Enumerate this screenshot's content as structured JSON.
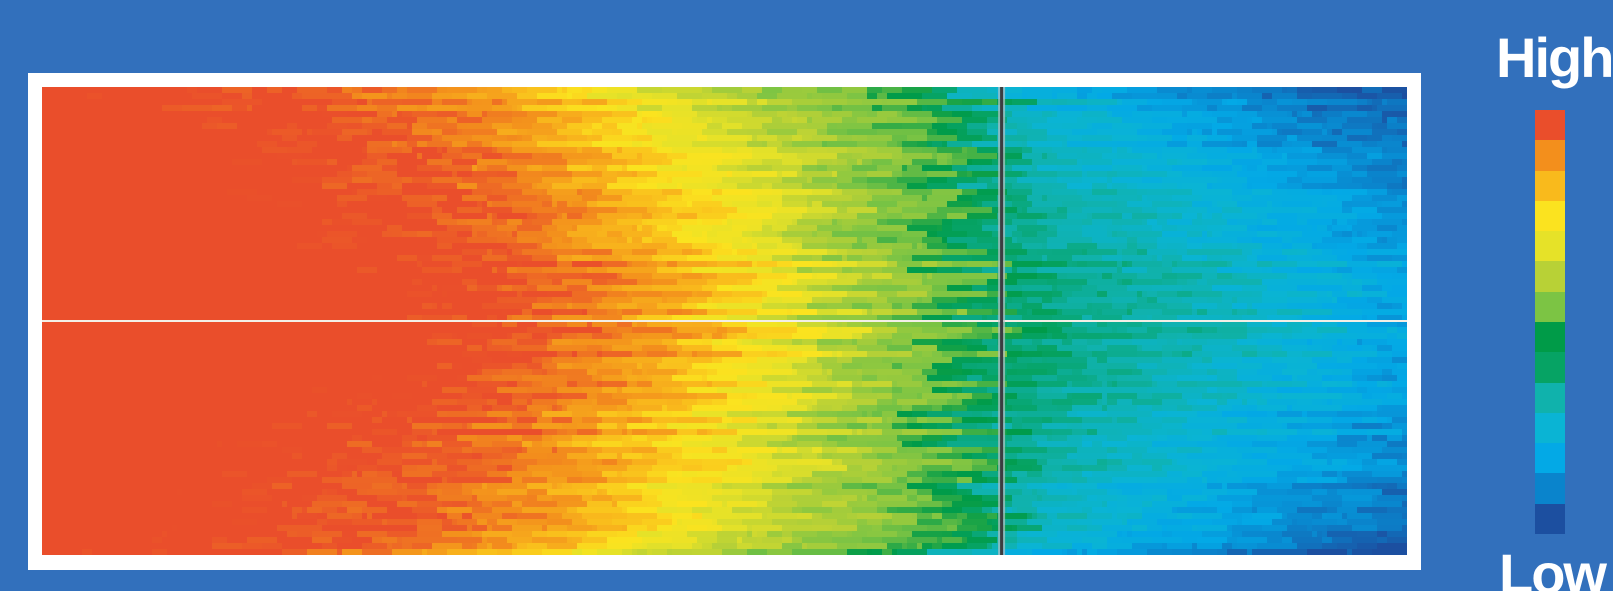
{
  "chart_data": {
    "type": "heatmap",
    "title": "",
    "xlabel": "",
    "ylabel": "",
    "legend": {
      "placement": "right",
      "high_label": "High",
      "low_label": "Low"
    },
    "color_scale": [
      "#1c4fa0",
      "#0a84cc",
      "#03a9e6",
      "#0ab4d4",
      "#10b2ac",
      "#06a364",
      "#009b48",
      "#7cc444",
      "#b8d136",
      "#e6e228",
      "#fbe31f",
      "#f9ba1c",
      "#f38f1c",
      "#ea4e2b"
    ],
    "intensity_profile": {
      "x_fraction": [
        0.0,
        0.1,
        0.2,
        0.3,
        0.38,
        0.46,
        0.54,
        0.6,
        0.66,
        0.7,
        0.75,
        0.8,
        0.85,
        0.9,
        0.95,
        1.0
      ],
      "level_center": [
        13.6,
        13.6,
        13.5,
        13.3,
        12.6,
        11.6,
        9.5,
        7.6,
        7.0,
        5.0,
        4.6,
        4.3,
        3.8,
        3.2,
        2.6,
        1.8
      ],
      "level_edge": [
        13.5,
        13.3,
        12.8,
        12.0,
        10.8,
        8.6,
        7.5,
        7.0,
        6.0,
        3.5,
        2.6,
        1.8,
        1.2,
        0.7,
        0.3,
        0.0
      ]
    },
    "dividers": {
      "vertical_x_fraction": 0.703,
      "horizontal_y_fraction": 0.5
    }
  }
}
